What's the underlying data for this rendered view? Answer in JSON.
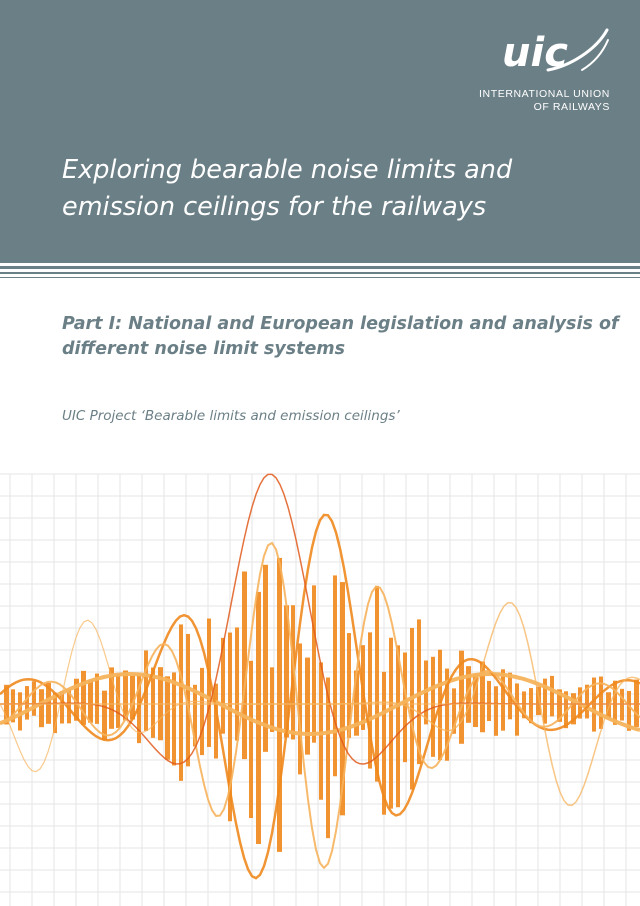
{
  "brand": {
    "logo_text": "uic",
    "org_line1": "INTERNATIONAL UNION",
    "org_line2": "OF RAILWAYS"
  },
  "title": {
    "line1": "Exploring bearable noise limits and",
    "line2": "emission ceilings for the railways"
  },
  "subtitle": {
    "line1": "Part I: National and European legislation and analysis of",
    "line2": "different noise limit systems"
  },
  "project": "UIC Project ‘Bearable limits and emission ceilings’",
  "colors": {
    "header": "#6b7f86",
    "orange": "#f08a1e",
    "light_orange": "#f6b35c",
    "red_orange": "#e05a1c",
    "grid": "#e6e6e6"
  },
  "icons": {
    "logo": "uic-logo-icon",
    "artwork": "sound-wave-illustration"
  }
}
